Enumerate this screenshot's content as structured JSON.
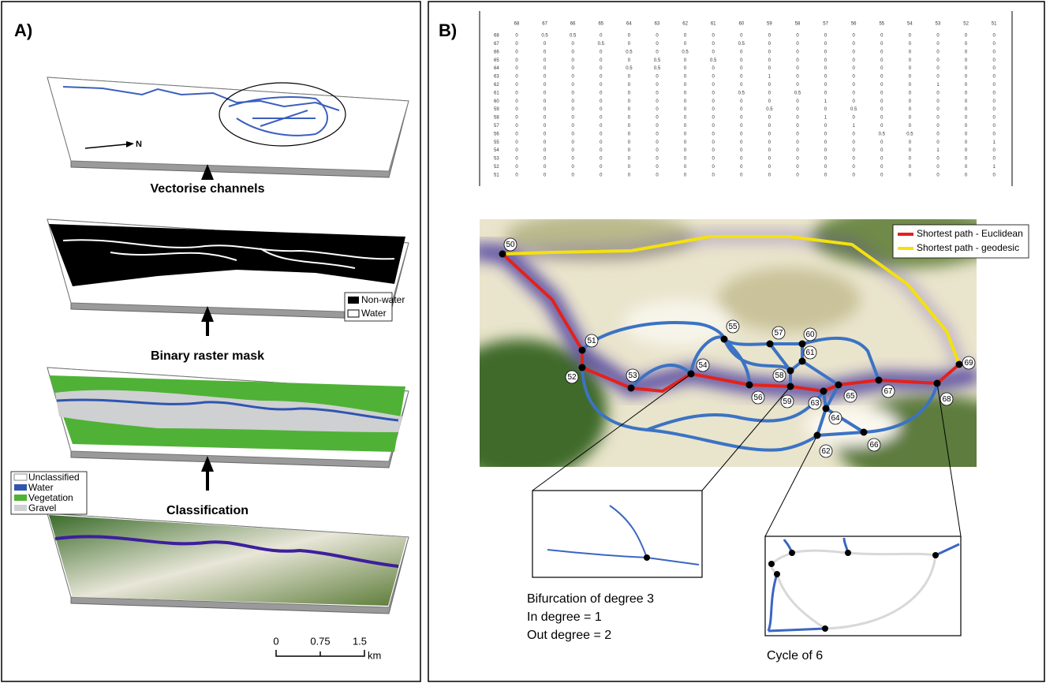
{
  "panel_a": {
    "label": "A)",
    "steps": [
      "Vectorise channels",
      "Binary raster mask",
      "Classification"
    ],
    "north": "N",
    "mask_legend": [
      "Non-water",
      "Water"
    ],
    "class_legend": [
      "Unclassified",
      "Water",
      "Vegetation",
      "Gravel"
    ],
    "scale_bar": {
      "ticks": [
        "0",
        "0.75",
        "1.5"
      ],
      "unit": "km"
    }
  },
  "panel_b": {
    "label": "B)",
    "matrix": {
      "columns": [
        "68",
        "67",
        "66",
        "65",
        "64",
        "63",
        "62",
        "61",
        "60",
        "59",
        "58",
        "57",
        "56",
        "55",
        "54",
        "53",
        "52",
        "51"
      ],
      "rows": [
        {
          "label": "68",
          "values": [
            "0",
            "0.5",
            "0.5",
            "0",
            "0",
            "0",
            "0",
            "0",
            "0",
            "0",
            "0",
            "0",
            "0",
            "0",
            "0",
            "0",
            "0",
            "0"
          ]
        },
        {
          "label": "67",
          "values": [
            "0",
            "0",
            "0",
            "0.5",
            "0",
            "0",
            "0",
            "0",
            "0.5",
            "0",
            "0",
            "0",
            "0",
            "0",
            "0",
            "0",
            "0",
            "0"
          ]
        },
        {
          "label": "66",
          "values": [
            "0",
            "0",
            "0",
            "0",
            "0.5",
            "0",
            "0.5",
            "0",
            "0",
            "0",
            "0",
            "0",
            "0",
            "0",
            "0",
            "0",
            "0",
            "0"
          ]
        },
        {
          "label": "65",
          "values": [
            "0",
            "0",
            "0",
            "0",
            "0",
            "0.5",
            "0",
            "0.5",
            "0",
            "0",
            "0",
            "0",
            "0",
            "0",
            "0",
            "0",
            "0",
            "0"
          ]
        },
        {
          "label": "64",
          "values": [
            "0",
            "0",
            "0",
            "0",
            "0.5",
            "0.5",
            "0",
            "0",
            "0",
            "0",
            "0",
            "0",
            "0",
            "0",
            "0",
            "0",
            "0",
            "0"
          ]
        },
        {
          "label": "63",
          "values": [
            "0",
            "0",
            "0",
            "0",
            "0",
            "0",
            "0",
            "0",
            "0",
            "1",
            "0",
            "0",
            "0",
            "0",
            "0",
            "0",
            "0",
            "0"
          ]
        },
        {
          "label": "62",
          "values": [
            "0",
            "0",
            "0",
            "0",
            "0",
            "0",
            "0",
            "0",
            "0",
            "0",
            "0",
            "0",
            "0",
            "0",
            "0",
            "1",
            "0",
            "0"
          ]
        },
        {
          "label": "61",
          "values": [
            "0",
            "0",
            "0",
            "0",
            "0",
            "0",
            "0",
            "0",
            "0.5",
            "0",
            "0.5",
            "0",
            "0",
            "0",
            "0",
            "0",
            "0",
            "0"
          ]
        },
        {
          "label": "60",
          "values": [
            "0",
            "0",
            "0",
            "0",
            "0",
            "0",
            "0",
            "0",
            "0",
            "0",
            "0",
            "1",
            "0",
            "0",
            "0",
            "0",
            "0",
            "0"
          ]
        },
        {
          "label": "59",
          "values": [
            "0",
            "0",
            "0",
            "0",
            "0",
            "0",
            "0",
            "0",
            "0",
            "0.5",
            "0",
            "0",
            "0.5",
            "0",
            "0",
            "0",
            "0",
            "0"
          ]
        },
        {
          "label": "58",
          "values": [
            "0",
            "0",
            "0",
            "0",
            "0",
            "0",
            "0",
            "0",
            "0",
            "0",
            "0",
            "1",
            "0",
            "0",
            "0",
            "0",
            "0",
            "0"
          ]
        },
        {
          "label": "57",
          "values": [
            "0",
            "0",
            "0",
            "0",
            "0",
            "0",
            "0",
            "0",
            "0",
            "0",
            "0",
            "0",
            "1",
            "0",
            "0",
            "0",
            "0",
            "0"
          ]
        },
        {
          "label": "56",
          "values": [
            "0",
            "0",
            "0",
            "0",
            "0",
            "0",
            "0",
            "0",
            "0",
            "0",
            "0",
            "0",
            "0",
            "0.5",
            "0.5",
            "0",
            "0",
            "0"
          ]
        },
        {
          "label": "55",
          "values": [
            "0",
            "0",
            "0",
            "0",
            "0",
            "0",
            "0",
            "0",
            "0",
            "0",
            "0",
            "0",
            "0",
            "0",
            "0",
            "0",
            "0",
            "1"
          ]
        },
        {
          "label": "54",
          "values": [
            "0",
            "0",
            "0",
            "0",
            "0",
            "0",
            "0",
            "0",
            "0",
            "0",
            "0",
            "0",
            "0",
            "0",
            "0",
            "1",
            "0",
            "0"
          ]
        },
        {
          "label": "53",
          "values": [
            "0",
            "0",
            "0",
            "0",
            "0",
            "0",
            "0",
            "0",
            "0",
            "0",
            "0",
            "0",
            "0",
            "0",
            "0",
            "0",
            "0",
            "0"
          ]
        },
        {
          "label": "52",
          "values": [
            "0",
            "0",
            "0",
            "0",
            "0",
            "0",
            "0",
            "0",
            "0",
            "0",
            "0",
            "0",
            "0",
            "0",
            "0",
            "0",
            "0",
            "1"
          ]
        },
        {
          "label": "51",
          "values": [
            "0",
            "0",
            "0",
            "0",
            "0",
            "0",
            "0",
            "0",
            "0",
            "0",
            "0",
            "0",
            "0",
            "0",
            "0",
            "0",
            "0",
            "0"
          ]
        }
      ]
    },
    "legend": [
      "Shortest path - Euclidean",
      "Shortest path - geodesic"
    ],
    "nodes": [
      "50",
      "51",
      "52",
      "53",
      "54",
      "55",
      "56",
      "57",
      "58",
      "59",
      "60",
      "61",
      "62",
      "63",
      "64",
      "65",
      "66",
      "67",
      "68",
      "69"
    ],
    "bifurcation": [
      "Bifurcation of degree 3",
      "In degree = 1",
      "Out degree = 2"
    ],
    "cycle": "Cycle of 6"
  }
}
